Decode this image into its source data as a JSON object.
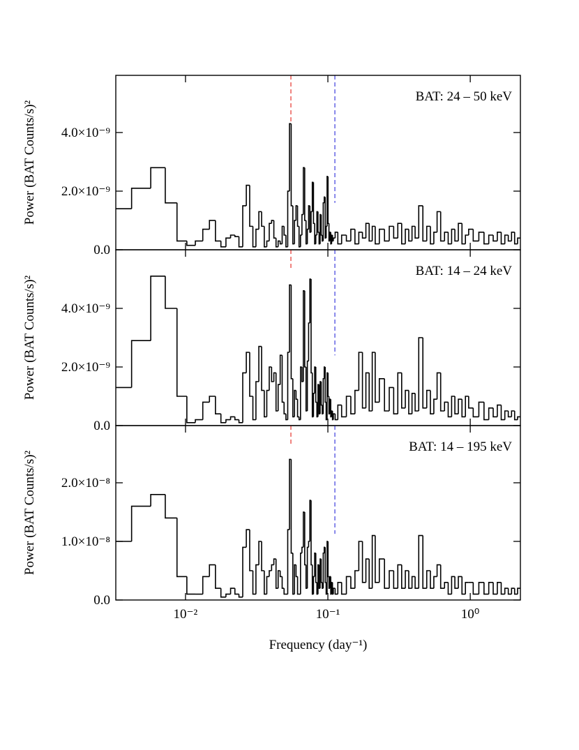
{
  "chart_data": {
    "type": "line",
    "step": true,
    "color": "#000000",
    "xscale": "log",
    "xlim": [
      0.00324,
      2.25
    ],
    "xticks": [
      {
        "value": 0.01,
        "label": "10⁻²"
      },
      {
        "value": 0.1,
        "label": "10⁻¹"
      },
      {
        "value": 1,
        "label": "10⁰"
      }
    ],
    "xlabel": "Frequency (day⁻¹)",
    "x": [
      0.0035,
      0.005,
      0.0065,
      0.008,
      0.0095,
      0.011,
      0.0125,
      0.014,
      0.0155,
      0.017,
      0.0185,
      0.02,
      0.0215,
      0.023,
      0.0245,
      0.026,
      0.0275,
      0.029,
      0.0305,
      0.032,
      0.0335,
      0.035,
      0.0365,
      0.038,
      0.0395,
      0.041,
      0.0425,
      0.044,
      0.0455,
      0.047,
      0.0485,
      0.05,
      0.0515,
      0.053,
      0.0545,
      0.056,
      0.0575,
      0.059,
      0.0605,
      0.062,
      0.0635,
      0.065,
      0.0665,
      0.068,
      0.0695,
      0.071,
      0.0725,
      0.074,
      0.0755,
      0.077,
      0.0785,
      0.08,
      0.0815,
      0.083,
      0.0845,
      0.086,
      0.0875,
      0.089,
      0.0905,
      0.092,
      0.0935,
      0.095,
      0.0965,
      0.098,
      0.0995,
      0.101,
      0.1025,
      0.104,
      0.1055,
      0.107,
      0.1085,
      0.11,
      0.115,
      0.12,
      0.13,
      0.14,
      0.15,
      0.16,
      0.17,
      0.18,
      0.19,
      0.2,
      0.21,
      0.22,
      0.24,
      0.26,
      0.28,
      0.3,
      0.32,
      0.34,
      0.36,
      0.38,
      0.4,
      0.42,
      0.45,
      0.48,
      0.51,
      0.54,
      0.57,
      0.6,
      0.64,
      0.68,
      0.72,
      0.76,
      0.8,
      0.85,
      0.9,
      0.95,
      1.0,
      1.1,
      1.2,
      1.3,
      1.4,
      1.5,
      1.6,
      1.7,
      1.8,
      1.9,
      2.0,
      2.1,
      2.2
    ],
    "panels": [
      {
        "annotation": "BAT: 24 – 50 keV",
        "ylabel": "Power (BAT Counts/s)²",
        "ylim": [
          0,
          5.95e-09
        ],
        "yticks": [
          {
            "value": 0,
            "label": "0.0"
          },
          {
            "value": 2e-09,
            "label": "2.0×10⁻⁹"
          },
          {
            "value": 4e-09,
            "label": "4.0×10⁻⁹"
          }
        ],
        "markers": [
          {
            "x": 0.055,
            "y": 4.36e-09,
            "color": "#e8403a"
          },
          {
            "x": 0.112,
            "y": 1.6e-09,
            "color": "#4a4ae0"
          }
        ],
        "values": [
          1.4e-09,
          2.1e-09,
          2.8e-09,
          1.6e-09,
          3e-10,
          1.5e-10,
          3e-10,
          7e-10,
          1e-09,
          3e-10,
          1e-10,
          4e-10,
          5e-10,
          4.5e-10,
          1e-10,
          1.5e-09,
          2.2e-09,
          8e-10,
          1e-10,
          7e-10,
          1.3e-09,
          8e-10,
          1e-10,
          3e-10,
          9e-10,
          1e-09,
          4e-10,
          1e-10,
          3e-10,
          2e-10,
          8e-10,
          5e-10,
          1e-10,
          2e-09,
          4.3e-09,
          1.5e-09,
          2e-10,
          1e-09,
          1.5e-09,
          8e-10,
          1e-10,
          5e-10,
          1.2e-09,
          2.8e-09,
          1e-09,
          2e-10,
          7e-10,
          1.5e-09,
          6e-10,
          1.3e-09,
          2.3e-09,
          9e-10,
          2e-10,
          5e-10,
          1.3e-09,
          6e-10,
          2e-10,
          1.2e-09,
          5e-10,
          3e-10,
          1.6e-09,
          1.8e-09,
          4e-10,
          8e-10,
          2.5e-09,
          9e-10,
          3e-10,
          6e-10,
          2e-10,
          5e-10,
          3e-10,
          4e-10,
          6e-10,
          2e-10,
          5e-10,
          3e-10,
          7e-10,
          2e-10,
          6e-10,
          4e-10,
          9e-10,
          3e-10,
          8e-10,
          2e-10,
          7e-10,
          3e-10,
          8e-10,
          4e-10,
          9e-10,
          2e-10,
          7e-10,
          3e-10,
          8e-10,
          4e-10,
          1.5e-09,
          3e-10,
          8e-10,
          2e-10,
          6e-10,
          1.3e-09,
          3e-10,
          6e-10,
          2e-10,
          7e-10,
          3e-10,
          9e-10,
          2e-10,
          5e-10,
          7e-10,
          3e-10,
          6e-10,
          2e-10,
          5e-10,
          3e-10,
          6e-10,
          2e-10,
          5e-10,
          3e-10,
          6e-10,
          2e-10,
          4e-10
        ]
      },
      {
        "annotation": "BAT: 14 – 24 keV",
        "ylabel": "Power (BAT Counts/s)²",
        "ylim": [
          0,
          6e-09
        ],
        "yticks": [
          {
            "value": 0,
            "label": "0.0"
          },
          {
            "value": 2e-09,
            "label": "2.0×10⁻⁹"
          },
          {
            "value": 4e-09,
            "label": "4.0×10⁻⁹"
          }
        ],
        "markers": [
          {
            "x": 0.055,
            "y": 5.36e-09,
            "color": "#e8403a"
          },
          {
            "x": 0.112,
            "y": 2.4e-09,
            "color": "#4a4ae0"
          }
        ],
        "values": [
          1.3e-09,
          2.9e-09,
          5.1e-09,
          4e-09,
          1e-09,
          1e-10,
          2e-10,
          8e-10,
          1e-09,
          4e-10,
          1e-10,
          2e-10,
          3e-10,
          2e-10,
          1e-10,
          1.8e-09,
          2.5e-09,
          1e-09,
          2e-10,
          1.5e-09,
          2.7e-09,
          1.2e-09,
          3e-10,
          1.2e-09,
          2e-09,
          1.5e-09,
          1.8e-09,
          5e-10,
          1.4e-09,
          2.4e-09,
          8e-10,
          4e-10,
          2e-10,
          2.5e-09,
          4.8e-09,
          1.6e-09,
          3e-10,
          1.2e-09,
          9e-10,
          3e-10,
          2e-10,
          2e-09,
          1.5e-09,
          4.6e-09,
          2e-09,
          5e-10,
          2.2e-09,
          3.5e-09,
          5e-09,
          1.8e-09,
          3e-10,
          1.1e-09,
          2e-09,
          8e-10,
          3e-10,
          1.4e-09,
          4e-10,
          1.5e-09,
          7e-10,
          4e-10,
          1.6e-09,
          2e-09,
          8e-10,
          2e-10,
          1.8e-09,
          1e-09,
          4e-10,
          9e-10,
          3e-10,
          5e-10,
          2e-10,
          4e-10,
          2e-10,
          7e-10,
          3e-10,
          1e-09,
          4e-10,
          1.2e-09,
          2.5e-09,
          6e-10,
          1.8e-09,
          5e-10,
          2.5e-09,
          8e-10,
          1.6e-09,
          5e-10,
          1.3e-09,
          4e-10,
          1.8e-09,
          6e-10,
          1.2e-09,
          4e-10,
          1.1e-09,
          5e-10,
          3e-09,
          6e-10,
          1.2e-09,
          4e-10,
          9e-10,
          1.8e-09,
          5e-10,
          8e-10,
          3e-10,
          1e-09,
          4e-10,
          9e-10,
          3e-10,
          1e-09,
          6e-10,
          3e-10,
          8e-10,
          2e-10,
          6e-10,
          3e-10,
          7e-10,
          2e-10,
          5e-10,
          3e-10,
          5e-10,
          2e-10,
          3e-10
        ]
      },
      {
        "annotation": "BAT: 14 – 195 keV",
        "ylabel": "Power (BAT Counts/s)²",
        "ylim": [
          0,
          2.976e-08
        ],
        "yticks": [
          {
            "value": 0,
            "label": "0.0"
          },
          {
            "value": 1e-08,
            "label": "1.0×10⁻⁸"
          },
          {
            "value": 2e-08,
            "label": "2.0×10⁻⁸"
          }
        ],
        "markers": [
          {
            "x": 0.055,
            "y": 2.62e-08,
            "color": "#e8403a"
          },
          {
            "x": 0.112,
            "y": 1.13e-08,
            "color": "#4a4ae0"
          }
        ],
        "values": [
          1e-08,
          1.6e-08,
          1.8e-08,
          1.4e-08,
          4e-09,
          1e-09,
          1e-09,
          4e-09,
          6e-09,
          2e-09,
          5e-10,
          1e-09,
          2e-09,
          1e-09,
          5e-10,
          9e-09,
          1.2e-08,
          5e-09,
          1e-09,
          6e-09,
          1e-08,
          5e-09,
          1e-09,
          4e-09,
          5e-09,
          6e-09,
          7e-09,
          2e-09,
          5e-09,
          4e-09,
          2e-09,
          1e-09,
          1e-09,
          1.2e-08,
          2.4e-08,
          8e-09,
          1e-09,
          6e-09,
          4e-09,
          1e-09,
          1e-09,
          8e-09,
          9e-09,
          1.5e-08,
          6e-09,
          2e-09,
          9e-09,
          1e-08,
          1.7e-08,
          6e-09,
          1e-09,
          4e-09,
          8e-09,
          3e-09,
          1e-09,
          6e-09,
          2e-09,
          7e-09,
          3e-09,
          2e-09,
          8e-09,
          9e-09,
          3e-09,
          1e-09,
          1e-08,
          4e-09,
          2e-09,
          4e-09,
          1e-09,
          3e-09,
          1e-09,
          2e-09,
          1e-09,
          3e-09,
          1e-09,
          4e-09,
          2e-09,
          5e-09,
          1e-08,
          3e-09,
          7e-09,
          2e-09,
          1.1e-08,
          3e-09,
          7e-09,
          2e-09,
          5e-09,
          2e-09,
          6e-09,
          2e-09,
          5e-09,
          2e-09,
          4e-09,
          2e-09,
          1.1e-08,
          2e-09,
          5e-09,
          2e-09,
          4e-09,
          6e-09,
          2e-09,
          3e-09,
          1e-09,
          4e-09,
          2e-09,
          4e-09,
          1e-09,
          3e-09,
          3e-09,
          1e-09,
          3e-09,
          1e-09,
          3e-09,
          1e-09,
          3e-09,
          1e-09,
          2e-09,
          1e-09,
          2e-09,
          1e-09,
          2e-09
        ]
      }
    ]
  }
}
